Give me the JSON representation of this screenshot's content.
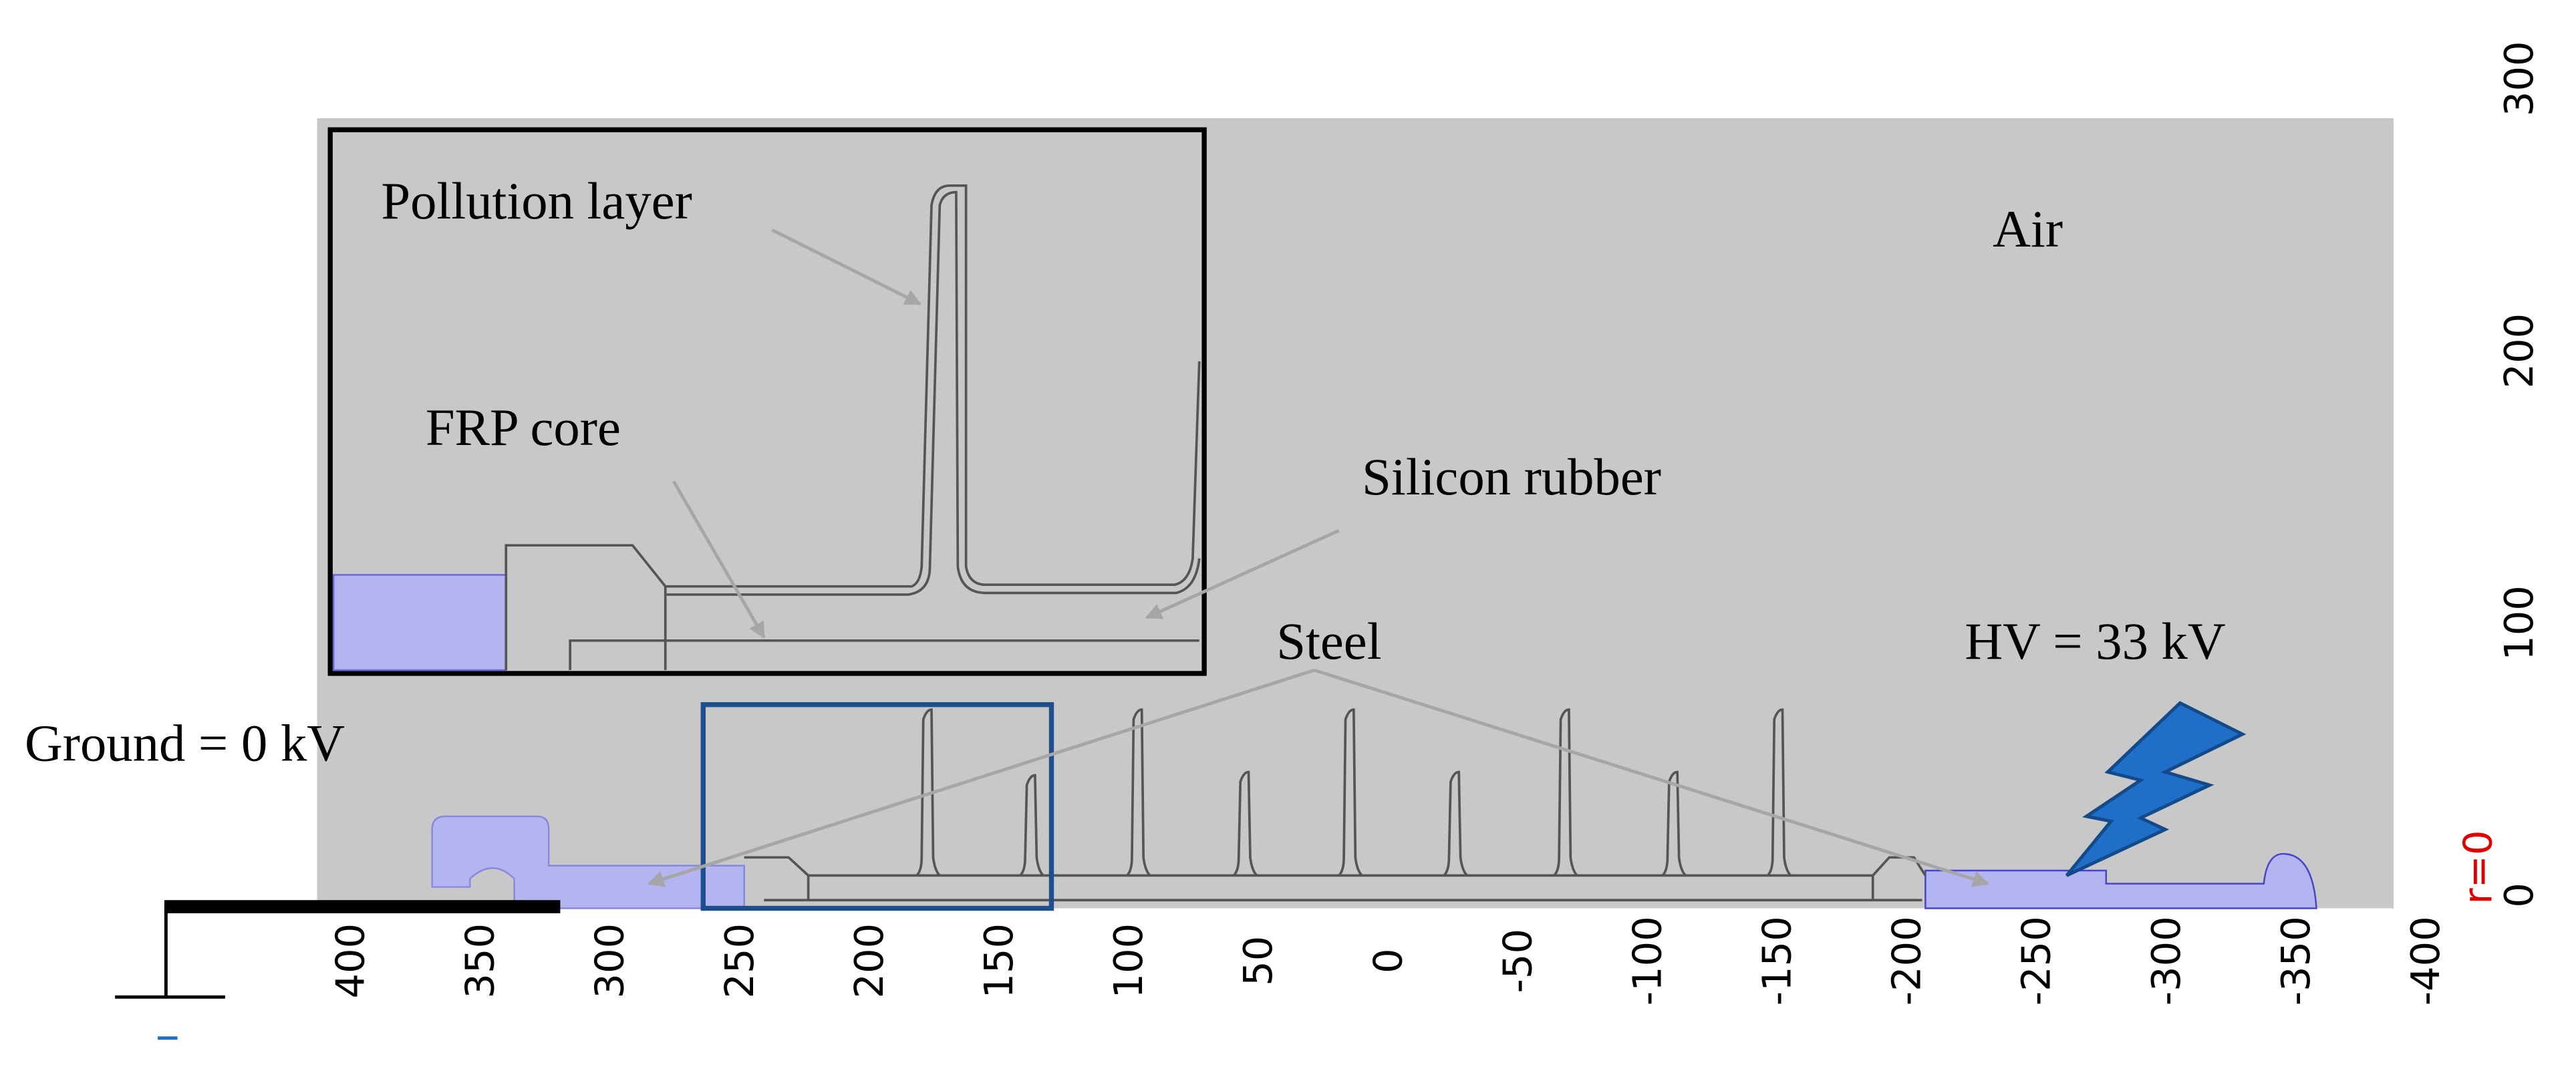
{
  "labels": {
    "pollution_layer": "Pollution layer",
    "frp_core": "FRP core",
    "silicon_rubber": "Silicon rubber",
    "air": "Air",
    "steel": "Steel",
    "hv": "HV = 33 kV",
    "ground": "Ground = 0 kV"
  },
  "x_axis": {
    "ticks": [
      400,
      350,
      300,
      250,
      200,
      150,
      100,
      50,
      0,
      -50,
      -100,
      -150,
      -200,
      -250,
      -300,
      -350,
      -400
    ]
  },
  "y_axis": {
    "label": "r=0",
    "ticks": [
      0,
      100,
      200,
      300
    ]
  }
}
